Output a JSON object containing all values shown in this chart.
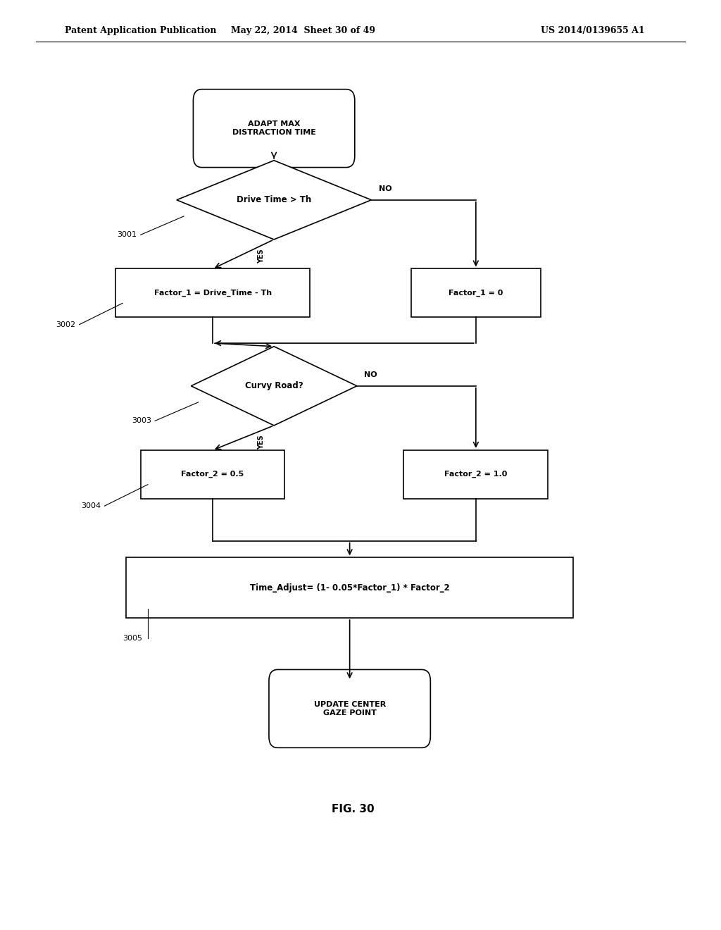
{
  "header_left": "Patent Application Publication",
  "header_mid": "May 22, 2014  Sheet 30 of 49",
  "header_right": "US 2014/0139655 A1",
  "caption": "FIG. 30",
  "background_color": "#ffffff",
  "text_color": "#000000",
  "start_label": "ADAPT MAX\nDISTRACTION TIME",
  "d1_label": "Drive Time > Th",
  "box_yes1_label": "Factor_1 = Drive_Time - Th",
  "box_no1_label": "Factor_1 = 0",
  "d2_label": "Curvy Road?",
  "box_yes2_label": "Factor_2 = 0.5",
  "box_no2_label": "Factor_2 = 1.0",
  "final_label": "Time_Adjust= (1- 0.05*Factor_1) * Factor_2",
  "end_label": "UPDATE CENTER\nGAZE POINT",
  "ref1": "3001",
  "ref2": "3002",
  "ref3": "3003",
  "ref4": "3004",
  "ref5": "3005"
}
